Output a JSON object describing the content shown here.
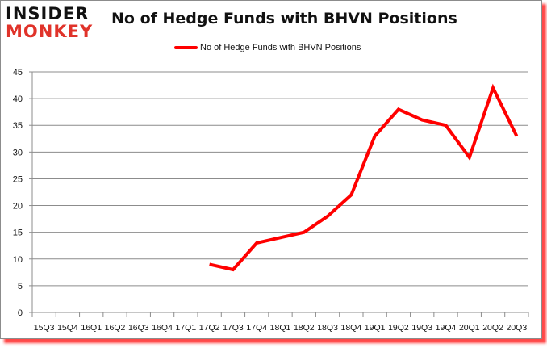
{
  "logo": {
    "line1": "INSIDER",
    "line2": "MONKEY"
  },
  "header": {
    "title": "No of Hedge Funds with BHVN Positions"
  },
  "legend": {
    "label": "No of Hedge Funds with BHVN Positions",
    "color": "#ff0000"
  },
  "chart_data": {
    "type": "line",
    "title": "No of Hedge Funds with BHVN Positions",
    "xlabel": "",
    "ylabel": "",
    "categories": [
      "15Q3",
      "15Q4",
      "16Q1",
      "16Q2",
      "16Q3",
      "16Q4",
      "17Q1",
      "17Q2",
      "17Q3",
      "17Q4",
      "18Q1",
      "18Q2",
      "18Q3",
      "18Q4",
      "19Q1",
      "19Q2",
      "19Q3",
      "19Q4",
      "20Q1",
      "20Q2",
      "20Q3"
    ],
    "series": [
      {
        "name": "No of Hedge Funds with BHVN Positions",
        "color": "#ff0000",
        "values": [
          null,
          null,
          null,
          null,
          null,
          null,
          null,
          9,
          8,
          13,
          14,
          15,
          18,
          22,
          33,
          38,
          36,
          35,
          29,
          42,
          33
        ]
      }
    ],
    "ylim": [
      0,
      45
    ],
    "yticks": [
      0,
      5,
      10,
      15,
      20,
      25,
      30,
      35,
      40,
      45
    ],
    "grid": true,
    "legend_position": "top"
  }
}
